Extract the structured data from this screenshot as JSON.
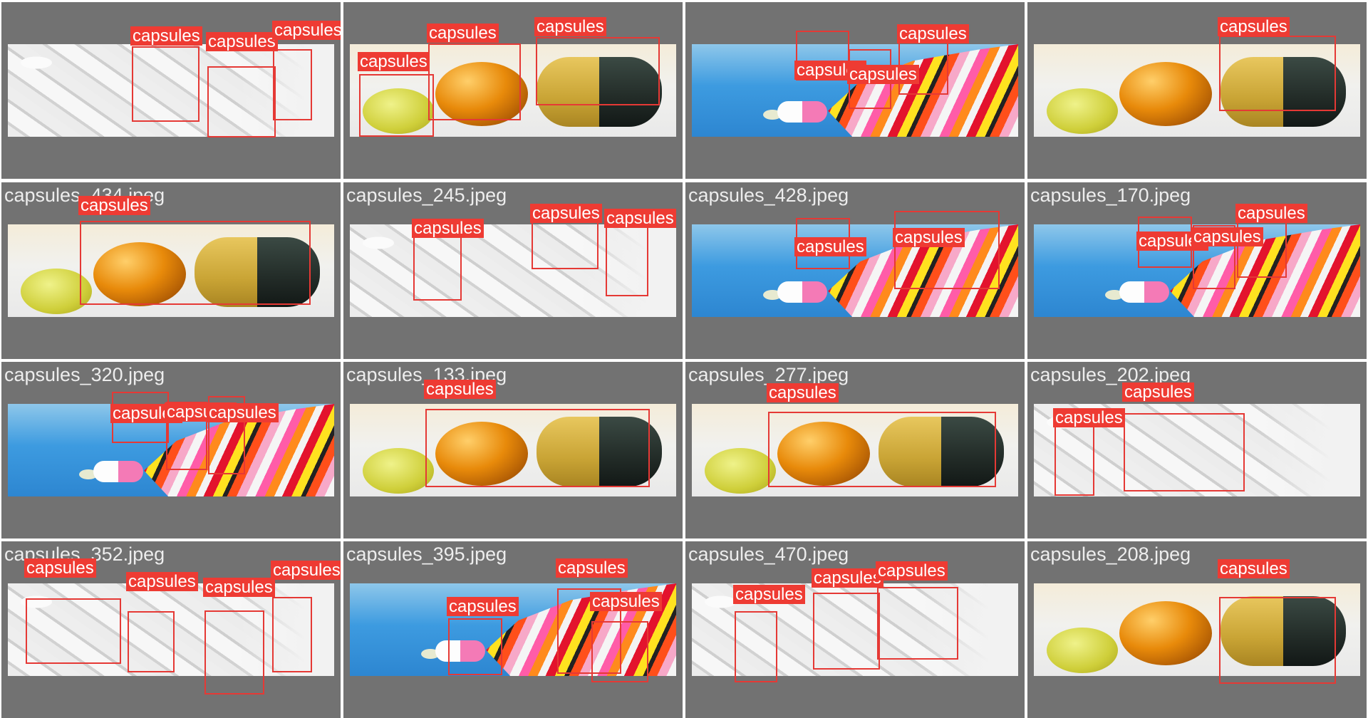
{
  "cells": [
    {
      "title": "",
      "type": "white",
      "boxes": [
        "capsules",
        "capsules",
        "capsules"
      ]
    },
    {
      "title": "",
      "type": "softgel",
      "boxes": [
        "capsules",
        "capsules",
        "capsules"
      ]
    },
    {
      "title": "",
      "type": "colorful",
      "boxes": [
        "capsules",
        "capsules",
        "capsules"
      ]
    },
    {
      "title": "",
      "type": "softgel",
      "boxes": [
        "capsules"
      ]
    },
    {
      "title": "capsules_434.jpeg",
      "type": "softgel",
      "boxes": [
        "capsules"
      ]
    },
    {
      "title": "capsules_245.jpeg",
      "type": "white",
      "boxes": [
        "capsules",
        "capsules",
        "capsules"
      ]
    },
    {
      "title": "capsules_428.jpeg",
      "type": "colorful",
      "boxes": [
        "capsules",
        "capsules"
      ]
    },
    {
      "title": "capsules_170.jpeg",
      "type": "colorful",
      "boxes": [
        "capsules",
        "capsules",
        "capsules"
      ]
    },
    {
      "title": "capsules_320.jpeg",
      "type": "colorful",
      "boxes": [
        "capsules",
        "capsules",
        "capsules"
      ]
    },
    {
      "title": "capsules_133.jpeg",
      "type": "softgel",
      "boxes": [
        "capsules"
      ]
    },
    {
      "title": "capsules_277.jpeg",
      "type": "softgel",
      "boxes": [
        "capsules"
      ]
    },
    {
      "title": "capsules_202.jpeg",
      "type": "white",
      "boxes": [
        "capsules",
        "capsules"
      ]
    },
    {
      "title": "capsules_352.jpeg",
      "type": "white",
      "boxes": [
        "capsules",
        "capsules",
        "capsules",
        "capsules"
      ]
    },
    {
      "title": "capsules_395.jpeg",
      "type": "colorful",
      "boxes": [
        "capsules",
        "capsules",
        "capsules"
      ]
    },
    {
      "title": "capsules_470.jpeg",
      "type": "white",
      "boxes": [
        "capsules",
        "capsules",
        "capsules"
      ]
    },
    {
      "title": "capsules_208.jpeg",
      "type": "softgel",
      "boxes": [
        "capsules"
      ]
    }
  ],
  "colors": {
    "box": "#e53935",
    "label_bg": "#ee3b33",
    "tile_bg": "#727272"
  }
}
